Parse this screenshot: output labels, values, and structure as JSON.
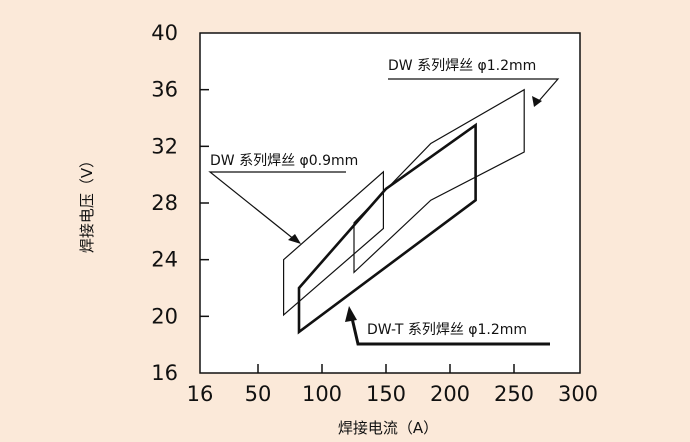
{
  "chart_data": {
    "type": "area",
    "xlabel": "焊接电流（A）",
    "ylabel": "焊接电压（V）",
    "x_ticks": [
      "16",
      "50",
      "100",
      "150",
      "200",
      "250",
      "300"
    ],
    "y_ticks": [
      "16",
      "20",
      "24",
      "28",
      "32",
      "36",
      "40"
    ],
    "xlim": [
      0,
      300
    ],
    "ylim": [
      16,
      40
    ],
    "grid": false,
    "series": [
      {
        "name": "DW 系列焊丝 φ0.9mm",
        "polygon": [
          [
            70,
            24
          ],
          [
            148,
            30.2
          ],
          [
            148,
            26.2
          ],
          [
            70,
            20.1
          ]
        ]
      },
      {
        "name": "DW 系列焊丝 φ1.2mm",
        "polygon": [
          [
            125,
            26.6
          ],
          [
            185,
            32.2
          ],
          [
            258,
            36
          ],
          [
            258,
            31.6
          ],
          [
            185,
            28.2
          ],
          [
            125,
            23.1
          ]
        ]
      },
      {
        "name": "DW-T 系列焊丝 φ1.2mm",
        "polygon": [
          [
            82,
            22
          ],
          [
            150,
            29
          ],
          [
            220,
            33.5
          ],
          [
            220,
            28.2
          ],
          [
            82,
            18.9
          ]
        ]
      }
    ]
  }
}
